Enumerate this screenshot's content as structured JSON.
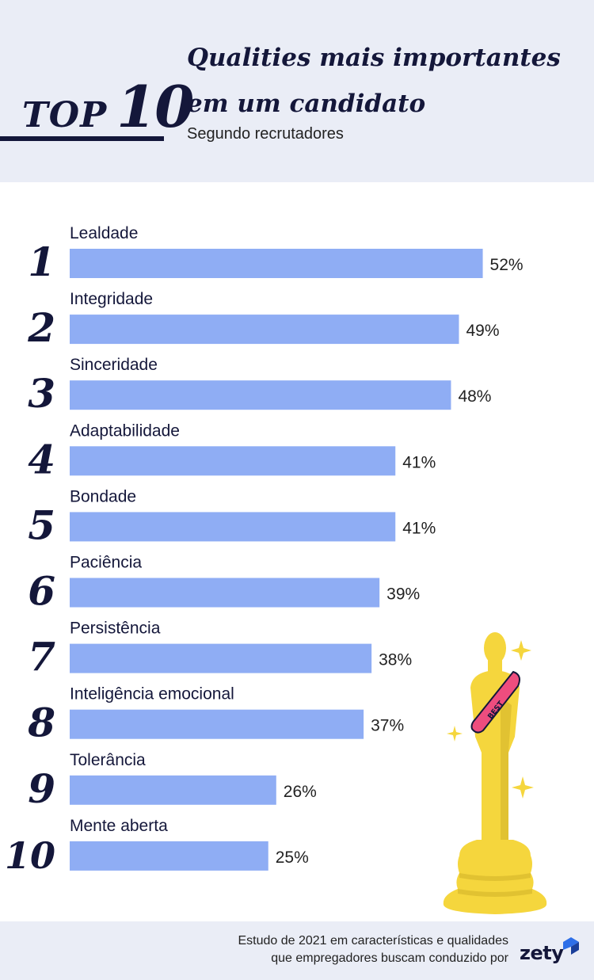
{
  "header": {
    "top_word": "TOP",
    "top_number": "10",
    "title_line1": "Qualities mais importantes",
    "title_line2": "em um candidato",
    "subtitle": "Segundo recrutadores"
  },
  "chart_data": {
    "type": "bar",
    "orientation": "horizontal",
    "ranks": [
      "1",
      "2",
      "3",
      "4",
      "5",
      "6",
      "7",
      "8",
      "9",
      "10"
    ],
    "categories": [
      "Lealdade",
      "Integridade",
      "Sinceridade",
      "Adaptabilidade",
      "Bondade",
      "Paciência",
      "Persistência",
      "Inteligência emocional",
      "Tolerância",
      "Mente aberta"
    ],
    "values": [
      52,
      49,
      48,
      41,
      41,
      39,
      38,
      37,
      26,
      25
    ],
    "value_suffix": "%",
    "bar_color": "#8fadf4"
  },
  "illustration": {
    "sash_text": "BEST",
    "gold": "#f5d63d",
    "sash_color": "#ee4d7e"
  },
  "footer": {
    "line1": "Estudo de 2021 em características e qualidades",
    "line2": "que empregadores buscam conduzido por",
    "brand": "zety",
    "brand_color": "#2e6fe8"
  }
}
